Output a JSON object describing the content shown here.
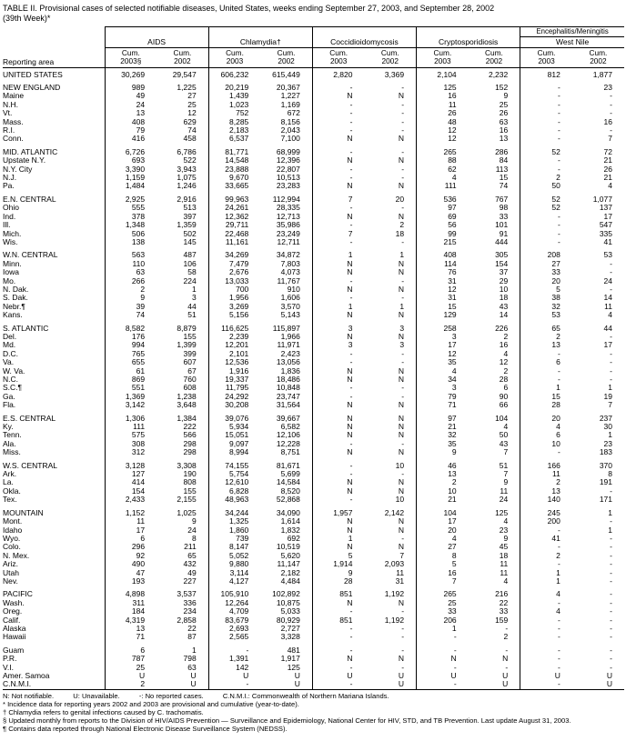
{
  "title": "TABLE II. Provisional cases of selected notifiable diseases, United States, weeks ending September 27, 2003, and September 28, 2002",
  "subtitle": "(39th Week)*",
  "table": {
    "reporting_area_label": "Reporting area",
    "groups": [
      {
        "top": "",
        "label": "AIDS",
        "sub": [
          "Cum.\n2003§",
          "Cum.\n2002"
        ]
      },
      {
        "top": "",
        "label": "Chlamydia†",
        "sub": [
          "Cum.\n2003",
          "Cum.\n2002"
        ]
      },
      {
        "top": "",
        "label": "Coccidioidomycosis",
        "sub": [
          "Cum.\n2003",
          "Cum.\n2002"
        ]
      },
      {
        "top": "",
        "label": "Cryptosporidiosis",
        "sub": [
          "Cum.\n2003",
          "Cum.\n2002"
        ]
      },
      {
        "top": "Encephalitis/Meningitis",
        "label": "West Nile",
        "sub": [
          "Cum.\n2003",
          "Cum.\n2002"
        ]
      }
    ],
    "rows": [
      {
        "area": "UNITED STATES",
        "gap": false,
        "v": [
          "30,269",
          "29,547",
          "606,232",
          "615,449",
          "2,820",
          "3,369",
          "2,104",
          "2,232",
          "812",
          "1,877"
        ]
      },
      {
        "area": "NEW ENGLAND",
        "gap": true,
        "v": [
          "989",
          "1,225",
          "20,219",
          "20,367",
          "-",
          "-",
          "125",
          "152",
          "-",
          "23"
        ]
      },
      {
        "area": "Maine",
        "gap": false,
        "v": [
          "49",
          "27",
          "1,439",
          "1,227",
          "N",
          "N",
          "16",
          "9",
          "-",
          "-"
        ]
      },
      {
        "area": "N.H.",
        "gap": false,
        "v": [
          "24",
          "25",
          "1,023",
          "1,169",
          "-",
          "-",
          "11",
          "25",
          "-",
          "-"
        ]
      },
      {
        "area": "Vt.",
        "gap": false,
        "v": [
          "13",
          "12",
          "752",
          "672",
          "-",
          "-",
          "26",
          "26",
          "-",
          "-"
        ]
      },
      {
        "area": "Mass.",
        "gap": false,
        "v": [
          "408",
          "629",
          "8,285",
          "8,156",
          "-",
          "-",
          "48",
          "63",
          "-",
          "16"
        ]
      },
      {
        "area": "R.I.",
        "gap": false,
        "v": [
          "79",
          "74",
          "2,183",
          "2,043",
          "-",
          "-",
          "12",
          "16",
          "-",
          "-"
        ]
      },
      {
        "area": "Conn.",
        "gap": false,
        "v": [
          "416",
          "458",
          "6,537",
          "7,100",
          "N",
          "N",
          "12",
          "13",
          "-",
          "7"
        ]
      },
      {
        "area": "MID. ATLANTIC",
        "gap": true,
        "v": [
          "6,726",
          "6,786",
          "81,771",
          "68,999",
          "-",
          "-",
          "265",
          "286",
          "52",
          "72"
        ]
      },
      {
        "area": "Upstate N.Y.",
        "gap": false,
        "v": [
          "693",
          "522",
          "14,548",
          "12,396",
          "N",
          "N",
          "88",
          "84",
          "-",
          "21"
        ]
      },
      {
        "area": "N.Y. City",
        "gap": false,
        "v": [
          "3,390",
          "3,943",
          "23,888",
          "22,807",
          "-",
          "-",
          "62",
          "113",
          "-",
          "26"
        ]
      },
      {
        "area": "N.J.",
        "gap": false,
        "v": [
          "1,159",
          "1,075",
          "9,670",
          "10,513",
          "-",
          "-",
          "4",
          "15",
          "2",
          "21"
        ]
      },
      {
        "area": "Pa.",
        "gap": false,
        "v": [
          "1,484",
          "1,246",
          "33,665",
          "23,283",
          "N",
          "N",
          "111",
          "74",
          "50",
          "4"
        ]
      },
      {
        "area": "E.N. CENTRAL",
        "gap": true,
        "v": [
          "2,925",
          "2,916",
          "99,963",
          "112,994",
          "7",
          "20",
          "536",
          "767",
          "52",
          "1,077"
        ]
      },
      {
        "area": "Ohio",
        "gap": false,
        "v": [
          "555",
          "513",
          "24,261",
          "28,335",
          "-",
          "-",
          "97",
          "98",
          "52",
          "137"
        ]
      },
      {
        "area": "Ind.",
        "gap": false,
        "v": [
          "378",
          "397",
          "12,362",
          "12,713",
          "N",
          "N",
          "69",
          "33",
          "-",
          "17"
        ]
      },
      {
        "area": "Ill.",
        "gap": false,
        "v": [
          "1,348",
          "1,359",
          "29,711",
          "35,986",
          "-",
          "2",
          "56",
          "101",
          "-",
          "547"
        ]
      },
      {
        "area": "Mich.",
        "gap": false,
        "v": [
          "506",
          "502",
          "22,468",
          "23,249",
          "7",
          "18",
          "99",
          "91",
          "-",
          "335"
        ]
      },
      {
        "area": "Wis.",
        "gap": false,
        "v": [
          "138",
          "145",
          "11,161",
          "12,711",
          "-",
          "-",
          "215",
          "444",
          "-",
          "41"
        ]
      },
      {
        "area": "W.N. CENTRAL",
        "gap": true,
        "v": [
          "563",
          "487",
          "34,269",
          "34,872",
          "1",
          "1",
          "408",
          "305",
          "208",
          "53"
        ]
      },
      {
        "area": "Minn.",
        "gap": false,
        "v": [
          "110",
          "106",
          "7,479",
          "7,803",
          "N",
          "N",
          "114",
          "154",
          "27",
          "-"
        ]
      },
      {
        "area": "Iowa",
        "gap": false,
        "v": [
          "63",
          "58",
          "2,676",
          "4,073",
          "N",
          "N",
          "76",
          "37",
          "33",
          "-"
        ]
      },
      {
        "area": "Mo.",
        "gap": false,
        "v": [
          "266",
          "224",
          "13,033",
          "11,767",
          "-",
          "-",
          "31",
          "29",
          "20",
          "24"
        ]
      },
      {
        "area": "N. Dak.",
        "gap": false,
        "v": [
          "2",
          "1",
          "700",
          "910",
          "N",
          "N",
          "12",
          "10",
          "5",
          "-"
        ]
      },
      {
        "area": "S. Dak.",
        "gap": false,
        "v": [
          "9",
          "3",
          "1,956",
          "1,606",
          "-",
          "-",
          "31",
          "18",
          "38",
          "14"
        ]
      },
      {
        "area": "Nebr.¶",
        "gap": false,
        "v": [
          "39",
          "44",
          "3,269",
          "3,570",
          "1",
          "1",
          "15",
          "43",
          "32",
          "11"
        ]
      },
      {
        "area": "Kans.",
        "gap": false,
        "v": [
          "74",
          "51",
          "5,156",
          "5,143",
          "N",
          "N",
          "129",
          "14",
          "53",
          "4"
        ]
      },
      {
        "area": "S. ATLANTIC",
        "gap": true,
        "v": [
          "8,582",
          "8,879",
          "116,625",
          "115,897",
          "3",
          "3",
          "258",
          "226",
          "65",
          "44"
        ]
      },
      {
        "area": "Del.",
        "gap": false,
        "v": [
          "176",
          "155",
          "2,239",
          "1,966",
          "N",
          "N",
          "3",
          "2",
          "2",
          "-"
        ]
      },
      {
        "area": "Md.",
        "gap": false,
        "v": [
          "994",
          "1,399",
          "12,201",
          "11,971",
          "3",
          "3",
          "17",
          "16",
          "13",
          "17"
        ]
      },
      {
        "area": "D.C.",
        "gap": false,
        "v": [
          "765",
          "399",
          "2,101",
          "2,423",
          "-",
          "-",
          "12",
          "4",
          "-",
          "-"
        ]
      },
      {
        "area": "Va.",
        "gap": false,
        "v": [
          "655",
          "607",
          "12,536",
          "13,056",
          "-",
          "-",
          "35",
          "12",
          "6",
          "-"
        ]
      },
      {
        "area": "W. Va.",
        "gap": false,
        "v": [
          "61",
          "67",
          "1,916",
          "1,836",
          "N",
          "N",
          "4",
          "2",
          "-",
          "-"
        ]
      },
      {
        "area": "N.C.",
        "gap": false,
        "v": [
          "869",
          "760",
          "19,337",
          "18,486",
          "N",
          "N",
          "34",
          "28",
          "-",
          "-"
        ]
      },
      {
        "area": "S.C.¶",
        "gap": false,
        "v": [
          "551",
          "608",
          "11,795",
          "10,848",
          "-",
          "-",
          "3",
          "6",
          "1",
          "1"
        ]
      },
      {
        "area": "Ga.",
        "gap": false,
        "v": [
          "1,369",
          "1,238",
          "24,292",
          "23,747",
          "-",
          "-",
          "79",
          "90",
          "15",
          "19"
        ]
      },
      {
        "area": "Fla.",
        "gap": false,
        "v": [
          "3,142",
          "3,648",
          "30,208",
          "31,564",
          "N",
          "N",
          "71",
          "66",
          "28",
          "7"
        ]
      },
      {
        "area": "E.S. CENTRAL",
        "gap": true,
        "v": [
          "1,306",
          "1,384",
          "39,076",
          "39,667",
          "N",
          "N",
          "97",
          "104",
          "20",
          "237"
        ]
      },
      {
        "area": "Ky.",
        "gap": false,
        "v": [
          "111",
          "222",
          "5,934",
          "6,582",
          "N",
          "N",
          "21",
          "4",
          "4",
          "30"
        ]
      },
      {
        "area": "Tenn.",
        "gap": false,
        "v": [
          "575",
          "566",
          "15,051",
          "12,106",
          "N",
          "N",
          "32",
          "50",
          "6",
          "1"
        ]
      },
      {
        "area": "Ala.",
        "gap": false,
        "v": [
          "308",
          "298",
          "9,097",
          "12,228",
          "-",
          "-",
          "35",
          "43",
          "10",
          "23"
        ]
      },
      {
        "area": "Miss.",
        "gap": false,
        "v": [
          "312",
          "298",
          "8,994",
          "8,751",
          "N",
          "N",
          "9",
          "7",
          "-",
          "183"
        ]
      },
      {
        "area": "W.S. CENTRAL",
        "gap": true,
        "v": [
          "3,128",
          "3,308",
          "74,155",
          "81,671",
          "-",
          "10",
          "46",
          "51",
          "166",
          "370"
        ]
      },
      {
        "area": "Ark.",
        "gap": false,
        "v": [
          "127",
          "190",
          "5,754",
          "5,699",
          "-",
          "-",
          "13",
          "7",
          "11",
          "8"
        ]
      },
      {
        "area": "La.",
        "gap": false,
        "v": [
          "414",
          "808",
          "12,610",
          "14,584",
          "N",
          "N",
          "2",
          "9",
          "2",
          "191"
        ]
      },
      {
        "area": "Okla.",
        "gap": false,
        "v": [
          "154",
          "155",
          "6,828",
          "8,520",
          "N",
          "N",
          "10",
          "11",
          "13",
          "-"
        ]
      },
      {
        "area": "Tex.",
        "gap": false,
        "v": [
          "2,433",
          "2,155",
          "48,963",
          "52,868",
          "-",
          "10",
          "21",
          "24",
          "140",
          "171"
        ]
      },
      {
        "area": "MOUNTAIN",
        "gap": true,
        "v": [
          "1,152",
          "1,025",
          "34,244",
          "34,090",
          "1,957",
          "2,142",
          "104",
          "125",
          "245",
          "1"
        ]
      },
      {
        "area": "Mont.",
        "gap": false,
        "v": [
          "11",
          "9",
          "1,325",
          "1,614",
          "N",
          "N",
          "17",
          "4",
          "200",
          "-"
        ]
      },
      {
        "area": "Idaho",
        "gap": false,
        "v": [
          "17",
          "24",
          "1,860",
          "1,832",
          "N",
          "N",
          "20",
          "23",
          "-",
          "1"
        ]
      },
      {
        "area": "Wyo.",
        "gap": false,
        "v": [
          "6",
          "8",
          "739",
          "692",
          "1",
          "-",
          "4",
          "9",
          "41",
          "-"
        ]
      },
      {
        "area": "Colo.",
        "gap": false,
        "v": [
          "296",
          "211",
          "8,147",
          "10,519",
          "N",
          "N",
          "27",
          "45",
          "-",
          "-"
        ]
      },
      {
        "area": "N. Mex.",
        "gap": false,
        "v": [
          "92",
          "65",
          "5,052",
          "5,620",
          "5",
          "7",
          "8",
          "18",
          "2",
          "-"
        ]
      },
      {
        "area": "Ariz.",
        "gap": false,
        "v": [
          "490",
          "432",
          "9,880",
          "11,147",
          "1,914",
          "2,093",
          "5",
          "11",
          "-",
          "-"
        ]
      },
      {
        "area": "Utah",
        "gap": false,
        "v": [
          "47",
          "49",
          "3,114",
          "2,182",
          "9",
          "11",
          "16",
          "11",
          "1",
          "-"
        ]
      },
      {
        "area": "Nev.",
        "gap": false,
        "v": [
          "193",
          "227",
          "4,127",
          "4,484",
          "28",
          "31",
          "7",
          "4",
          "1",
          "-"
        ]
      },
      {
        "area": "PACIFIC",
        "gap": true,
        "v": [
          "4,898",
          "3,537",
          "105,910",
          "102,892",
          "851",
          "1,192",
          "265",
          "216",
          "4",
          "-"
        ]
      },
      {
        "area": "Wash.",
        "gap": false,
        "v": [
          "311",
          "336",
          "12,264",
          "10,875",
          "N",
          "N",
          "25",
          "22",
          "-",
          "-"
        ]
      },
      {
        "area": "Oreg.",
        "gap": false,
        "v": [
          "184",
          "234",
          "4,709",
          "5,033",
          "-",
          "-",
          "33",
          "33",
          "4",
          "-"
        ]
      },
      {
        "area": "Calif.",
        "gap": false,
        "v": [
          "4,319",
          "2,858",
          "83,679",
          "80,929",
          "851",
          "1,192",
          "206",
          "159",
          "-",
          "-"
        ]
      },
      {
        "area": "Alaska",
        "gap": false,
        "v": [
          "13",
          "22",
          "2,693",
          "2,727",
          "-",
          "-",
          "1",
          "-",
          "-",
          "-"
        ]
      },
      {
        "area": "Hawaii",
        "gap": false,
        "v": [
          "71",
          "87",
          "2,565",
          "3,328",
          "-",
          "-",
          "-",
          "2",
          "-",
          "-"
        ]
      },
      {
        "area": "Guam",
        "gap": true,
        "v": [
          "6",
          "1",
          "-",
          "481",
          "-",
          "-",
          "-",
          "-",
          "-",
          "-"
        ]
      },
      {
        "area": "P.R.",
        "gap": false,
        "v": [
          "787",
          "798",
          "1,391",
          "1,917",
          "N",
          "N",
          "N",
          "N",
          "-",
          "-"
        ]
      },
      {
        "area": "V.I.",
        "gap": false,
        "v": [
          "25",
          "63",
          "142",
          "125",
          "-",
          "-",
          "-",
          "-",
          "-",
          "-"
        ]
      },
      {
        "area": "Amer. Samoa",
        "gap": false,
        "v": [
          "U",
          "U",
          "U",
          "U",
          "U",
          "U",
          "U",
          "U",
          "U",
          "U"
        ]
      },
      {
        "area": "C.N.M.I.",
        "gap": false,
        "v": [
          "2",
          "U",
          "-",
          "U",
          "-",
          "U",
          "-",
          "U",
          "-",
          "U"
        ]
      }
    ]
  },
  "footnotes": [
    "N: Not notifiable.          U: Unavailable.          -: No reported cases.          C.N.M.I.: Commonwealth of Northern Mariana Islands.",
    "* Incidence data for reporting years 2002 and 2003 are provisional and cumulative (year-to-date).",
    "† Chlamydia refers to genital infections caused by C. trachomatis.",
    "§ Updated monthly from reports to the Division of HIV/AIDS Prevention — Surveillance and Epidemiology, National Center for HIV, STD, and TB Prevention. Last update August 31, 2003.",
    "¶ Contains data reported through National Electronic Disease Surveillance System (NEDSS)."
  ]
}
